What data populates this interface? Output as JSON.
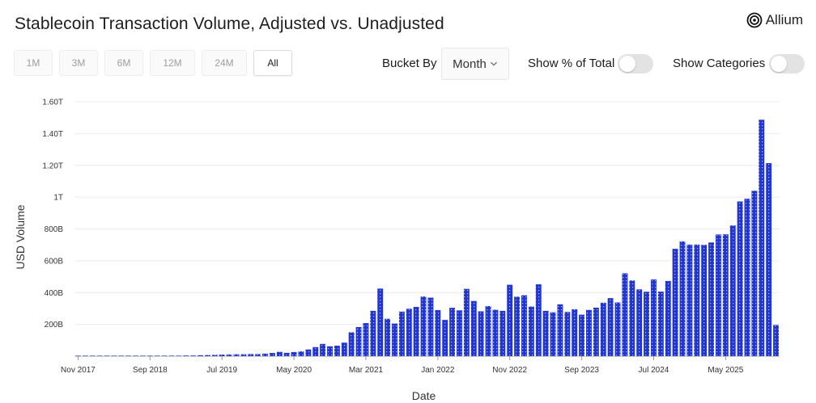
{
  "header": {
    "title": "Stablecoin Transaction Volume, Adjusted vs. Unadjusted",
    "brand": "Allium"
  },
  "range_tabs": [
    "1M",
    "3M",
    "6M",
    "12M",
    "24M",
    "All"
  ],
  "active_range": "All",
  "bucket": {
    "label": "Bucket By",
    "value": "Month"
  },
  "toggles": {
    "percent_label": "Show % of Total",
    "percent_on": false,
    "categories_label": "Show Categories",
    "categories_on": false
  },
  "colors": {
    "bar": "#2336cc",
    "bar_dot": "#b9c4ff",
    "grid": "#ececec",
    "toggle_off": "#e3e3e3"
  },
  "chart_data": {
    "type": "bar",
    "title": "Stablecoin Transaction Volume, Adjusted vs. Unadjusted",
    "xlabel": "Date",
    "ylabel": "USD Volume",
    "ylim": [
      0,
      1.6
    ],
    "y_unit": "trillion USD",
    "y_ticks": [
      {
        "value": 0.2,
        "label": "200B"
      },
      {
        "value": 0.4,
        "label": "400B"
      },
      {
        "value": 0.6,
        "label": "600B"
      },
      {
        "value": 0.8,
        "label": "800B"
      },
      {
        "value": 1.0,
        "label": "1T"
      },
      {
        "value": 1.2,
        "label": "1.20T"
      },
      {
        "value": 1.4,
        "label": "1.40T"
      },
      {
        "value": 1.6,
        "label": "1.60T"
      }
    ],
    "x_ticks": [
      {
        "index": 0,
        "label": "Nov 2017"
      },
      {
        "index": 10,
        "label": "Sep 2018"
      },
      {
        "index": 20,
        "label": "Jul 2019"
      },
      {
        "index": 30,
        "label": "May 2020"
      },
      {
        "index": 40,
        "label": "Mar 2021"
      },
      {
        "index": 50,
        "label": "Jan 2022"
      },
      {
        "index": 60,
        "label": "Nov 2022"
      },
      {
        "index": 70,
        "label": "Sep 2023"
      },
      {
        "index": 80,
        "label": "Jul 2024"
      },
      {
        "index": 90,
        "label": "May 2025"
      }
    ],
    "categories": [
      "Nov 2017",
      "Dec 2017",
      "Jan 2018",
      "Feb 2018",
      "Mar 2018",
      "Apr 2018",
      "May 2018",
      "Jun 2018",
      "Jul 2018",
      "Aug 2018",
      "Sep 2018",
      "Oct 2018",
      "Nov 2018",
      "Dec 2018",
      "Jan 2019",
      "Feb 2019",
      "Mar 2019",
      "Apr 2019",
      "May 2019",
      "Jun 2019",
      "Jul 2019",
      "Aug 2019",
      "Sep 2019",
      "Oct 2019",
      "Nov 2019",
      "Dec 2019",
      "Jan 2020",
      "Feb 2020",
      "Mar 2020",
      "Apr 2020",
      "May 2020",
      "Jun 2020",
      "Jul 2020",
      "Aug 2020",
      "Sep 2020",
      "Oct 2020",
      "Nov 2020",
      "Dec 2020",
      "Jan 2021",
      "Feb 2021",
      "Mar 2021",
      "Apr 2021",
      "May 2021",
      "Jun 2021",
      "Jul 2021",
      "Aug 2021",
      "Sep 2021",
      "Oct 2021",
      "Nov 2021",
      "Dec 2021",
      "Jan 2022",
      "Feb 2022",
      "Mar 2022",
      "Apr 2022",
      "May 2022",
      "Jun 2022",
      "Jul 2022",
      "Aug 2022",
      "Sep 2022",
      "Oct 2022",
      "Nov 2022",
      "Dec 2022",
      "Jan 2023",
      "Feb 2023",
      "Mar 2023",
      "Apr 2023",
      "May 2023",
      "Jun 2023",
      "Jul 2023",
      "Aug 2023",
      "Sep 2023",
      "Oct 2023",
      "Nov 2023",
      "Dec 2023",
      "Jan 2024",
      "Feb 2024",
      "Mar 2024",
      "Apr 2024",
      "May 2024",
      "Jun 2024",
      "Jul 2024",
      "Aug 2024",
      "Sep 2024",
      "Oct 2024",
      "Nov 2024",
      "Dec 2024",
      "Jan 2025",
      "Feb 2025",
      "Mar 2025",
      "Apr 2025",
      "May 2025",
      "Jun 2025",
      "Jul 2025",
      "Aug 2025",
      "Sep 2025",
      "Oct 2025",
      "Nov 2025",
      "Dec 2025"
    ],
    "values": [
      0.001,
      0.001,
      0.001,
      0.001,
      0.001,
      0.002,
      0.002,
      0.002,
      0.002,
      0.002,
      0.002,
      0.002,
      0.003,
      0.003,
      0.003,
      0.004,
      0.004,
      0.006,
      0.007,
      0.008,
      0.01,
      0.011,
      0.012,
      0.012,
      0.013,
      0.013,
      0.016,
      0.02,
      0.027,
      0.021,
      0.026,
      0.03,
      0.042,
      0.057,
      0.077,
      0.062,
      0.066,
      0.085,
      0.15,
      0.183,
      0.208,
      0.285,
      0.425,
      0.235,
      0.205,
      0.28,
      0.298,
      0.31,
      0.375,
      0.368,
      0.29,
      0.228,
      0.304,
      0.288,
      0.423,
      0.347,
      0.282,
      0.315,
      0.292,
      0.285,
      0.449,
      0.374,
      0.383,
      0.312,
      0.452,
      0.285,
      0.276,
      0.326,
      0.278,
      0.295,
      0.261,
      0.291,
      0.305,
      0.336,
      0.365,
      0.338,
      0.521,
      0.476,
      0.42,
      0.405,
      0.482,
      0.406,
      0.473,
      0.675,
      0.722,
      0.702,
      0.702,
      0.7,
      0.715,
      0.765,
      0.766,
      0.822,
      0.973,
      0.99,
      1.04,
      1.487,
      1.214,
      0.196
    ]
  }
}
